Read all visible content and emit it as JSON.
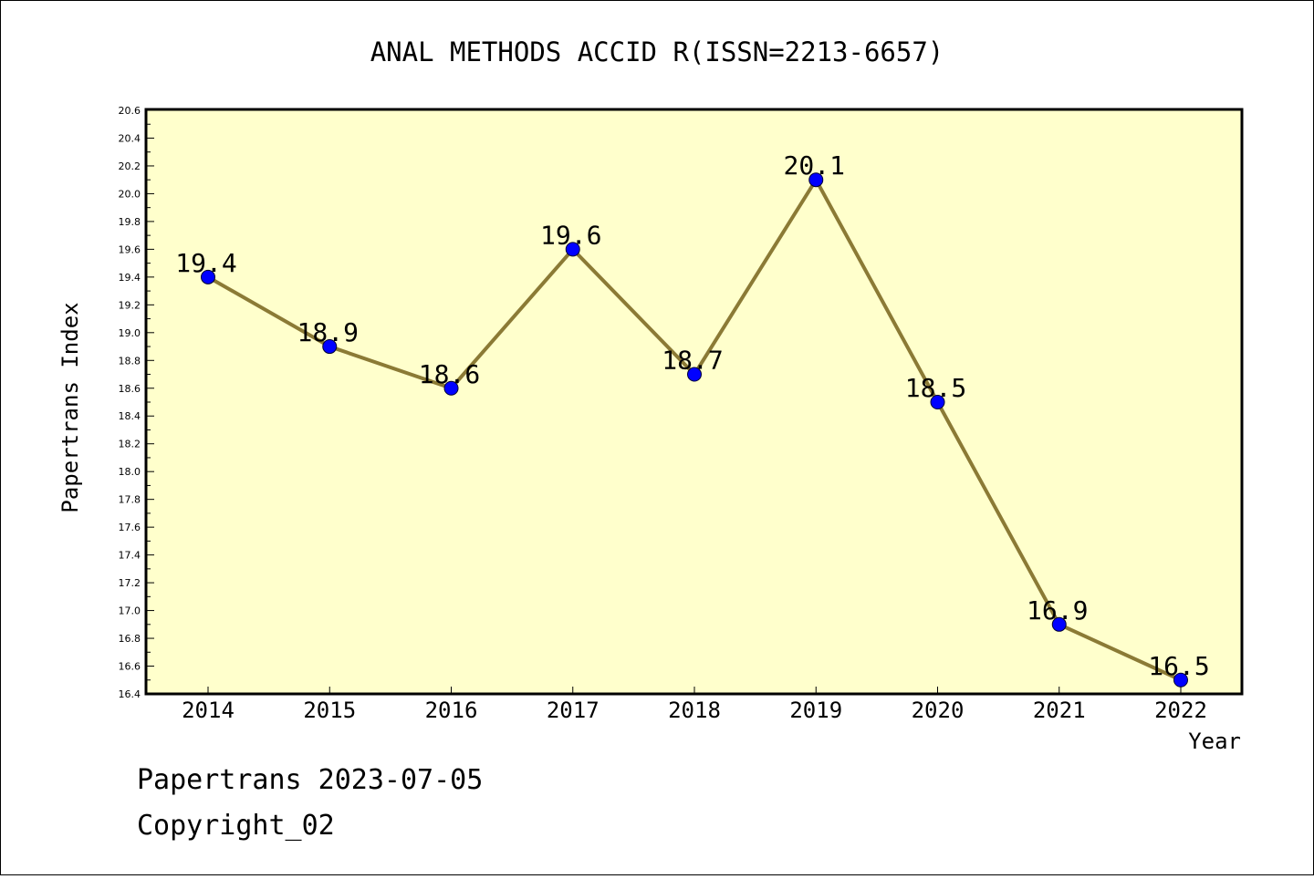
{
  "chart_data": {
    "type": "line",
    "title": "ANAL METHODS ACCID R(ISSN=2213-6657)",
    "xlabel": "Year",
    "ylabel": "Papertrans Index",
    "categories": [
      "2014",
      "2015",
      "2016",
      "2017",
      "2018",
      "2019",
      "2020",
      "2021",
      "2022"
    ],
    "values": [
      19.4,
      18.9,
      18.6,
      19.6,
      18.7,
      20.1,
      18.5,
      16.9,
      16.5
    ],
    "data_labels": [
      "19.4",
      "18.9",
      "18.6",
      "19.6",
      "18.7",
      "20.1",
      "18.5",
      "16.9",
      "16.5"
    ],
    "ylim": [
      16.4,
      20.6
    ],
    "yticks": [
      "16.4",
      "16.6",
      "16.8",
      "17.0",
      "17.2",
      "17.4",
      "17.6",
      "17.8",
      "18.0",
      "18.2",
      "18.4",
      "18.6",
      "18.8",
      "19.0",
      "19.2",
      "19.4",
      "19.6",
      "19.8",
      "20.0",
      "20.2",
      "20.4",
      "20.6"
    ],
    "grid": false,
    "legend": "none",
    "colors": {
      "plot_background": "#ffffcc",
      "line": "#8b7a35",
      "marker": "#0000ff",
      "marker_edge": "#000033"
    }
  },
  "footer": {
    "line1": "Papertrans 2023-07-05",
    "line2": "Copyright_02"
  }
}
